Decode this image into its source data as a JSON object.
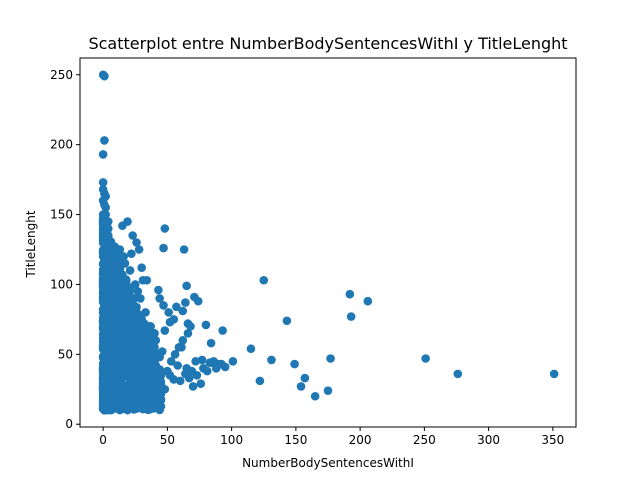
{
  "chart_data": {
    "type": "scatter",
    "title": "Scatterplot entre NumberBodySentencesWithI y TitleLenght",
    "xlabel": "NumberBodySentencesWithI",
    "ylabel": "TitleLenght",
    "xlim": [
      -18,
      368
    ],
    "ylim": [
      -2,
      262
    ],
    "xticks": [
      0,
      50,
      100,
      150,
      200,
      250,
      300,
      350
    ],
    "yticks": [
      0,
      50,
      100,
      150,
      200,
      250
    ],
    "marker_color": "#1f77b4",
    "grid": false,
    "legend": "none",
    "series": [
      {
        "points": [
          [
            0,
            250
          ],
          [
            1,
            249
          ],
          [
            1,
            203
          ],
          [
            0,
            193
          ],
          [
            0,
            173
          ],
          [
            0,
            168
          ],
          [
            1,
            165
          ],
          [
            2,
            163
          ],
          [
            0,
            160
          ],
          [
            1,
            157
          ],
          [
            2,
            155
          ],
          [
            48,
            140
          ],
          [
            19,
            145
          ],
          [
            15,
            142
          ],
          [
            26,
            130
          ],
          [
            23,
            135
          ],
          [
            47,
            126
          ],
          [
            63,
            125
          ],
          [
            28,
            125
          ],
          [
            22,
            122
          ],
          [
            16,
            120
          ],
          [
            125,
            103
          ],
          [
            30,
            112
          ],
          [
            34,
            103
          ],
          [
            31,
            103
          ],
          [
            65,
            99
          ],
          [
            43,
            96
          ],
          [
            71,
            91
          ],
          [
            74,
            88
          ],
          [
            64,
            87
          ],
          [
            57,
            84
          ],
          [
            62,
            81
          ],
          [
            192,
            93
          ],
          [
            206,
            88
          ],
          [
            193,
            77
          ],
          [
            143,
            74
          ],
          [
            52,
            73
          ],
          [
            66,
            72
          ],
          [
            80,
            71
          ],
          [
            93,
            67
          ],
          [
            48,
            67
          ],
          [
            35,
            70
          ],
          [
            40,
            65
          ],
          [
            84,
            58
          ],
          [
            115,
            54
          ],
          [
            61,
            55
          ],
          [
            77,
            46
          ],
          [
            101,
            45
          ],
          [
            131,
            46
          ],
          [
            149,
            43
          ],
          [
            177,
            47
          ],
          [
            251,
            47
          ],
          [
            83,
            44
          ],
          [
            85,
            44
          ],
          [
            90,
            43
          ],
          [
            157,
            33
          ],
          [
            122,
            31
          ],
          [
            154,
            27
          ],
          [
            165,
            20
          ],
          [
            175,
            24
          ],
          [
            276,
            36
          ],
          [
            351,
            36
          ],
          [
            40,
            40
          ],
          [
            50,
            38
          ],
          [
            55,
            32
          ],
          [
            60,
            31
          ],
          [
            45,
            28
          ],
          [
            48,
            25
          ],
          [
            70,
            27
          ],
          [
            76,
            29
          ],
          [
            35,
            15
          ],
          [
            20,
            11
          ],
          [
            25,
            18
          ],
          [
            30,
            22
          ],
          [
            38,
            25
          ],
          [
            42,
            30
          ],
          [
            44,
            35
          ],
          [
            52,
            35
          ],
          [
            58,
            42
          ],
          [
            65,
            40
          ],
          [
            72,
            45
          ],
          [
            5,
            130
          ],
          [
            8,
            125
          ],
          [
            10,
            118
          ],
          [
            12,
            110
          ],
          [
            14,
            105
          ],
          [
            18,
            100
          ],
          [
            20,
            95
          ],
          [
            22,
            90
          ],
          [
            24,
            85
          ],
          [
            26,
            80
          ],
          [
            28,
            78
          ],
          [
            30,
            75
          ],
          [
            32,
            72
          ],
          [
            34,
            68
          ],
          [
            36,
            62
          ],
          [
            38,
            58
          ],
          [
            40,
            55
          ],
          [
            42,
            50
          ],
          [
            44,
            48
          ],
          [
            46,
            52
          ],
          [
            3,
            140
          ],
          [
            4,
            135
          ],
          [
            6,
            120
          ],
          [
            7,
            115
          ],
          [
            9,
            108
          ],
          [
            11,
            100
          ],
          [
            13,
            95
          ],
          [
            15,
            88
          ],
          [
            17,
            82
          ],
          [
            19,
            76
          ],
          [
            21,
            70
          ],
          [
            23,
            66
          ],
          [
            25,
            60
          ],
          [
            27,
            56
          ],
          [
            29,
            50
          ],
          [
            31,
            46
          ],
          [
            33,
            42
          ],
          [
            35,
            38
          ],
          [
            37,
            34
          ],
          [
            39,
            30
          ],
          [
            2,
            150
          ],
          [
            4,
            145
          ],
          [
            6,
            110
          ],
          [
            8,
            98
          ],
          [
            10,
            92
          ],
          [
            12,
            86
          ],
          [
            14,
            80
          ],
          [
            16,
            74
          ],
          [
            18,
            68
          ],
          [
            20,
            62
          ],
          [
            22,
            56
          ],
          [
            24,
            50
          ],
          [
            26,
            44
          ],
          [
            28,
            38
          ],
          [
            30,
            32
          ],
          [
            32,
            26
          ],
          [
            34,
            20
          ],
          [
            36,
            16
          ],
          [
            3,
            12
          ],
          [
            5,
            14
          ],
          [
            7,
            16
          ],
          [
            9,
            18
          ],
          [
            11,
            20
          ],
          [
            13,
            22
          ],
          [
            15,
            24
          ],
          [
            17,
            26
          ],
          [
            19,
            28
          ],
          [
            21,
            30
          ],
          [
            23,
            32
          ],
          [
            25,
            34
          ],
          [
            53,
            45
          ],
          [
            56,
            50
          ],
          [
            59,
            55
          ],
          [
            62,
            60
          ],
          [
            66,
            65
          ],
          [
            68,
            70
          ],
          [
            55,
            75
          ],
          [
            51,
            80
          ],
          [
            47,
            85
          ],
          [
            44,
            90
          ],
          [
            41,
            60
          ],
          [
            39,
            65
          ],
          [
            37,
            70
          ],
          [
            33,
            80
          ],
          [
            29,
            90
          ],
          [
            27,
            95
          ],
          [
            25,
            100
          ],
          [
            21,
            110
          ],
          [
            17,
            115
          ],
          [
            13,
            125
          ],
          [
            64,
            36
          ],
          [
            67,
            33
          ],
          [
            69,
            38
          ],
          [
            73,
            35
          ],
          [
            78,
            40
          ],
          [
            81,
            38
          ],
          [
            86,
            45
          ],
          [
            88,
            40
          ],
          [
            92,
            43
          ],
          [
            95,
            41
          ],
          [
            1,
            10
          ],
          [
            2,
            11
          ],
          [
            3,
            10
          ],
          [
            4,
            12
          ],
          [
            6,
            10
          ],
          [
            8,
            11
          ],
          [
            10,
            12
          ],
          [
            12,
            11
          ],
          [
            14,
            13
          ],
          [
            16,
            12
          ],
          [
            1,
            30
          ],
          [
            1,
            50
          ],
          [
            1,
            70
          ],
          [
            1,
            90
          ],
          [
            1,
            110
          ],
          [
            1,
            130
          ],
          [
            2,
            40
          ],
          [
            2,
            60
          ],
          [
            2,
            80
          ],
          [
            2,
            100
          ],
          [
            2,
            120
          ],
          [
            3,
            25
          ],
          [
            3,
            45
          ],
          [
            3,
            65
          ],
          [
            3,
            85
          ],
          [
            3,
            105
          ],
          [
            3,
            125
          ],
          [
            4,
            35
          ],
          [
            4,
            55
          ],
          [
            4,
            75
          ],
          [
            4,
            95
          ],
          [
            4,
            115
          ],
          [
            5,
            20
          ],
          [
            5,
            40
          ],
          [
            5,
            60
          ],
          [
            5,
            80
          ],
          [
            5,
            100
          ],
          [
            5,
            120
          ],
          [
            6,
            30
          ],
          [
            6,
            50
          ],
          [
            6,
            70
          ],
          [
            6,
            90
          ],
          [
            7,
            25
          ],
          [
            7,
            45
          ],
          [
            7,
            65
          ],
          [
            7,
            85
          ],
          [
            7,
            105
          ],
          [
            8,
            35
          ],
          [
            8,
            55
          ],
          [
            8,
            75
          ],
          [
            9,
            30
          ],
          [
            9,
            50
          ],
          [
            9,
            70
          ],
          [
            9,
            90
          ],
          [
            10,
            40
          ],
          [
            10,
            60
          ],
          [
            10,
            80
          ],
          [
            11,
            35
          ],
          [
            11,
            55
          ],
          [
            11,
            75
          ],
          [
            12,
            30
          ],
          [
            12,
            50
          ],
          [
            12,
            70
          ],
          [
            13,
            40
          ],
          [
            13,
            60
          ],
          [
            13,
            80
          ],
          [
            14,
            35
          ],
          [
            14,
            55
          ],
          [
            15,
            45
          ],
          [
            15,
            65
          ],
          [
            16,
            40
          ],
          [
            16,
            60
          ],
          [
            17,
            50
          ],
          [
            18,
            45
          ],
          [
            18,
            55
          ],
          [
            19,
            40
          ],
          [
            20,
            50
          ],
          [
            21,
            45
          ],
          [
            22,
            40
          ],
          [
            23,
            48
          ]
        ]
      }
    ]
  }
}
